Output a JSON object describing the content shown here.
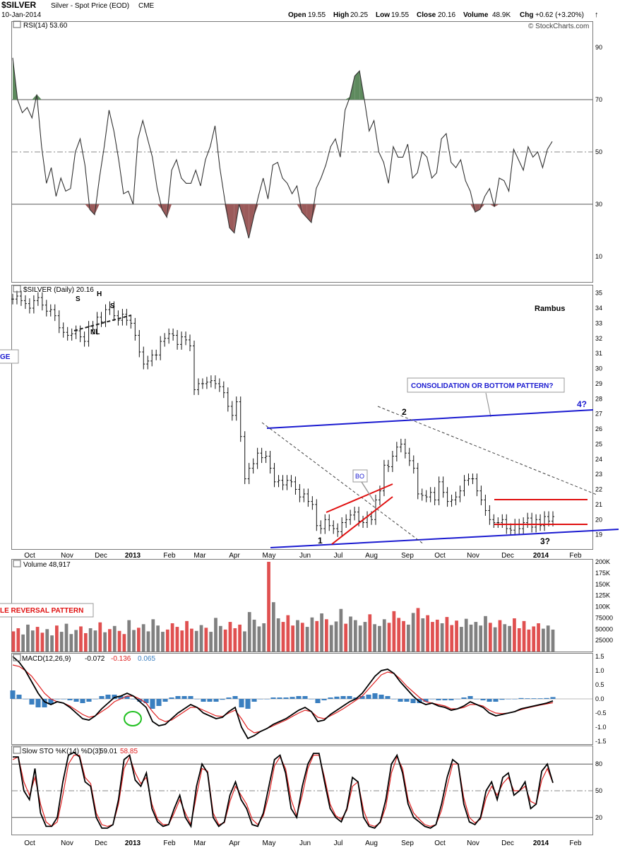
{
  "header": {
    "symbol": "$SILVER",
    "name": "Silver - Spot Price (EOD)",
    "exchange": "CME",
    "date": "10-Jan-2014",
    "open_label": "Open",
    "open": "19.55",
    "high_label": "High",
    "high": "20.25",
    "low_label": "Low",
    "low": "19.55",
    "close_label": "Close",
    "close": "20.16",
    "volume_label": "Volume",
    "volume": "48.9K",
    "chg_label": "Chg",
    "chg": "+0.62 (+3.20%)",
    "copyright": "© StockCharts.com"
  },
  "colors": {
    "rsi_overbought_fill": "#5e8a5e",
    "rsi_oversold_fill": "#9b5a5a",
    "trend_blue": "#1a1ad0",
    "pattern_red": "#e01010",
    "volume_up": "#e05050",
    "volume_down": "#808080",
    "macd_hist": "#3a7fc0",
    "signal_red": "#e02020",
    "circle_green": "#20c020"
  },
  "x_axis": {
    "labels": [
      "Oct",
      "Nov",
      "Dec",
      "2013",
      "Feb",
      "Mar",
      "Apr",
      "May",
      "Jun",
      "Jul",
      "Aug",
      "Sep",
      "Oct",
      "Nov",
      "Dec",
      "2014",
      "Feb"
    ],
    "bold": [
      "2013",
      "2014"
    ]
  },
  "annotations": {
    "rambus": "Rambus",
    "consolidation": "CONSOLIDATION OR BOTTOM PATTERN?",
    "point_4": "4?",
    "point_2": "2",
    "point_1": "1",
    "point_3": "3?",
    "bo": "BO",
    "hs_left": "S",
    "hs_head": "H",
    "hs_right": "S",
    "neckline": "NL",
    "left_edge_label": "GE",
    "reversal": "LE REVERSAL PATTERN"
  },
  "chart_data": [
    {
      "type": "line",
      "panel": "rsi",
      "title": "RSI(14) 53.60",
      "ylim": [
        0,
        100
      ],
      "yticks": [
        10,
        30,
        50,
        70,
        90
      ],
      "levels": {
        "overbought": 70,
        "oversold": 30,
        "mid": 50
      },
      "series": [
        {
          "name": "RSI(14)",
          "values": [
            86,
            70,
            65,
            67,
            63,
            72,
            52,
            38,
            44,
            33,
            40,
            35,
            36,
            50,
            55,
            45,
            28,
            26,
            40,
            52,
            66,
            58,
            47,
            34,
            35,
            30,
            55,
            62,
            55,
            48,
            36,
            28,
            25,
            43,
            47,
            40,
            38,
            38,
            43,
            37,
            47,
            52,
            60,
            44,
            32,
            21,
            19,
            30,
            24,
            17,
            25,
            33,
            40,
            32,
            45,
            46,
            40,
            38,
            34,
            37,
            27,
            25,
            23,
            36,
            40,
            45,
            52,
            55,
            48,
            66,
            71,
            79,
            81,
            70,
            58,
            62,
            50,
            46,
            38,
            52,
            48,
            48,
            53,
            40,
            42,
            50,
            48,
            40,
            42,
            55,
            57,
            46,
            44,
            47,
            39,
            35,
            27,
            28,
            33,
            36,
            29,
            40,
            39,
            35,
            51,
            47,
            43,
            52,
            48,
            50,
            44,
            51,
            54
          ]
        }
      ]
    },
    {
      "type": "bar",
      "panel": "price",
      "title": "$SILVER (Daily) 20.16",
      "ylim": [
        18,
        35.5
      ],
      "yticks": [
        19,
        20,
        21,
        22,
        23,
        24,
        25,
        26,
        27,
        28,
        29,
        30,
        31,
        32,
        33,
        34,
        35
      ],
      "series": [
        {
          "name": "$SILVER",
          "values": [
            34.6,
            34.8,
            34.5,
            34.3,
            34.0,
            34.5,
            34.7,
            34.2,
            33.8,
            33.9,
            33.5,
            32.7,
            32.4,
            32.2,
            32.3,
            32.5,
            32.1,
            31.8,
            32.8,
            32.6,
            33.4,
            33.1,
            33.9,
            34.1,
            33.5,
            33.2,
            33.6,
            33.2,
            33.0,
            32.2,
            31.1,
            30.3,
            30.5,
            30.9,
            30.9,
            31.8,
            32.0,
            32.3,
            32.2,
            31.6,
            32.1,
            31.9,
            31.5,
            28.6,
            29.0,
            29.0,
            29.1,
            29.2,
            29.0,
            28.8,
            28.4,
            27.5,
            26.9,
            27.8,
            25.5,
            22.7,
            23.4,
            23.7,
            24.4,
            24.1,
            24.2,
            23.4,
            22.5,
            22.6,
            22.3,
            22.6,
            22.5,
            22.0,
            21.5,
            21.7,
            21.2,
            21.0,
            19.6,
            19.4,
            20.0,
            19.6,
            19.4,
            19.2,
            19.8,
            20.0,
            20.3,
            20.5,
            19.9,
            19.8,
            20.2,
            20.0,
            21.3,
            21.9,
            23.6,
            23.5,
            24.2,
            24.8,
            25.0,
            24.4,
            23.9,
            23.4,
            21.7,
            21.6,
            21.5,
            21.8,
            21.3,
            22.5,
            21.8,
            21.2,
            21.3,
            21.5,
            21.9,
            22.6,
            22.7,
            22.7,
            21.9,
            21.3,
            20.6,
            20.0,
            19.8,
            19.8,
            20.0,
            19.4,
            19.3,
            19.7,
            19.4,
            19.8,
            20.1,
            19.5,
            20.0,
            19.6,
            20.2,
            19.9,
            20.2
          ]
        }
      ]
    },
    {
      "type": "bar",
      "panel": "volume",
      "title": "Volume 48,917",
      "ylim": [
        0,
        200000
      ],
      "yticks": [
        "25000",
        "50000",
        "75000",
        "100K",
        "125K",
        "150K",
        "175K",
        "200K"
      ],
      "series": [
        {
          "name": "Volume",
          "values": [
            45000,
            52000,
            38000,
            60000,
            47000,
            55000,
            42000,
            50000,
            36000,
            58000,
            44000,
            62000,
            39000,
            48000,
            56000,
            41000,
            52000,
            47000,
            65000,
            43000,
            50000,
            57000,
            46000,
            39000,
            70000,
            48000,
            53000,
            61000,
            45000,
            72000,
            58000,
            44000,
            49000,
            63000,
            55000,
            47000,
            68000,
            51000,
            46000,
            59000,
            53000,
            44000,
            75000,
            57000,
            49000,
            66000,
            52000,
            60000,
            45000,
            88000,
            71000,
            56000,
            63000,
            200000,
            110000,
            74000,
            66000,
            81000,
            58000,
            70000,
            64000,
            55000,
            76000,
            68000,
            85000,
            72000,
            59000,
            67000,
            95000,
            62000,
            78000,
            70000,
            58000,
            66000,
            83000,
            61000,
            57000,
            72000,
            64000,
            90000,
            75000,
            68000,
            60000,
            86000,
            97000,
            74000,
            81000,
            66000,
            71000,
            63000,
            77000,
            59000,
            69000,
            55000,
            73000,
            60000,
            66000,
            58000,
            79000,
            64000,
            54000,
            70000,
            61000,
            57000,
            74000,
            52000,
            68000,
            49000,
            56000,
            63000,
            51000,
            58000,
            48917
          ]
        }
      ]
    },
    {
      "type": "line",
      "panel": "macd",
      "title": "MACD(12,26,9)",
      "values_label": [
        "-0.072",
        "-0.136",
        "0.065"
      ],
      "ylim": [
        -1.6,
        1.6
      ],
      "yticks": [
        -1.5,
        -1.0,
        -0.5,
        0.0,
        0.5,
        1.0,
        1.5
      ],
      "series": [
        {
          "name": "MACD",
          "values": [
            1.5,
            1.3,
            1.0,
            0.6,
            0.2,
            -0.1,
            -0.2,
            -0.1,
            -0.15,
            -0.3,
            -0.5,
            -0.7,
            -0.75,
            -0.6,
            -0.35,
            -0.15,
            0.05,
            0.1,
            0.2,
            0.1,
            -0.1,
            -0.3,
            -0.8,
            -0.95,
            -0.9,
            -0.7,
            -0.5,
            -0.35,
            -0.2,
            -0.3,
            -0.5,
            -0.6,
            -0.7,
            -0.65,
            -0.45,
            -0.3,
            -1.0,
            -1.4,
            -1.3,
            -1.15,
            -1.05,
            -0.9,
            -0.8,
            -0.7,
            -0.55,
            -0.4,
            -0.3,
            -0.45,
            -0.8,
            -0.75,
            -0.55,
            -0.4,
            -0.25,
            -0.1,
            0.0,
            0.2,
            0.5,
            0.8,
            1.0,
            1.05,
            0.9,
            0.6,
            0.35,
            0.1,
            -0.1,
            -0.2,
            -0.15,
            -0.25,
            -0.3,
            -0.4,
            -0.35,
            -0.25,
            -0.1,
            -0.2,
            -0.3,
            -0.5,
            -0.6,
            -0.55,
            -0.5,
            -0.45,
            -0.35,
            -0.3,
            -0.25,
            -0.2,
            -0.15,
            -0.072
          ]
        },
        {
          "name": "Signal",
          "values": [
            1.2,
            1.15,
            1.0,
            0.8,
            0.5,
            0.2,
            0.0,
            -0.1,
            -0.15,
            -0.25,
            -0.4,
            -0.55,
            -0.65,
            -0.6,
            -0.45,
            -0.3,
            -0.1,
            0.0,
            0.1,
            0.1,
            0.0,
            -0.15,
            -0.45,
            -0.7,
            -0.8,
            -0.75,
            -0.6,
            -0.45,
            -0.3,
            -0.3,
            -0.4,
            -0.5,
            -0.6,
            -0.62,
            -0.5,
            -0.4,
            -0.7,
            -1.05,
            -1.2,
            -1.15,
            -1.05,
            -0.95,
            -0.85,
            -0.75,
            -0.62,
            -0.5,
            -0.4,
            -0.45,
            -0.65,
            -0.7,
            -0.6,
            -0.48,
            -0.35,
            -0.2,
            -0.05,
            0.1,
            0.35,
            0.6,
            0.85,
            0.95,
            0.9,
            0.7,
            0.45,
            0.25,
            0.05,
            -0.1,
            -0.15,
            -0.2,
            -0.25,
            -0.35,
            -0.35,
            -0.3,
            -0.2,
            -0.2,
            -0.25,
            -0.4,
            -0.5,
            -0.52,
            -0.5,
            -0.45,
            -0.38,
            -0.32,
            -0.27,
            -0.22,
            -0.18,
            -0.136
          ]
        },
        {
          "name": "Histogram",
          "values": [
            0.3,
            0.15,
            0.0,
            -0.2,
            -0.3,
            -0.3,
            -0.2,
            0.0,
            0.0,
            -0.05,
            -0.1,
            -0.15,
            -0.1,
            0.0,
            0.1,
            0.15,
            0.15,
            0.1,
            0.1,
            0.0,
            -0.1,
            -0.15,
            -0.35,
            -0.25,
            -0.1,
            0.05,
            0.1,
            0.1,
            0.1,
            0.0,
            -0.1,
            -0.1,
            -0.1,
            -0.03,
            0.05,
            0.1,
            -0.3,
            -0.35,
            -0.1,
            0.0,
            0.0,
            0.05,
            0.05,
            0.05,
            0.07,
            0.1,
            0.1,
            0.0,
            -0.15,
            -0.05,
            0.05,
            0.08,
            0.1,
            0.1,
            0.05,
            0.1,
            0.15,
            0.2,
            0.15,
            0.1,
            0.0,
            -0.1,
            -0.1,
            -0.15,
            -0.15,
            -0.1,
            0.0,
            -0.05,
            -0.05,
            -0.05,
            0.0,
            0.05,
            0.1,
            0.0,
            -0.05,
            -0.1,
            -0.1,
            -0.03,
            0.0,
            0.0,
            0.03,
            0.02,
            0.02,
            0.02,
            0.03,
            0.065
          ]
        }
      ]
    },
    {
      "type": "line",
      "panel": "stochastic",
      "title": "Slow STO %K(14) %D(3)",
      "values_label": [
        "59.01",
        "58.85"
      ],
      "ylim": [
        0,
        100
      ],
      "yticks": [
        20,
        50,
        80
      ],
      "series": [
        {
          "name": "%K",
          "values": [
            88,
            88,
            50,
            40,
            75,
            25,
            10,
            10,
            20,
            60,
            90,
            93,
            88,
            60,
            55,
            20,
            8,
            8,
            12,
            40,
            85,
            90,
            62,
            55,
            70,
            30,
            15,
            10,
            12,
            30,
            45,
            20,
            10,
            55,
            80,
            70,
            20,
            10,
            15,
            45,
            60,
            40,
            30,
            12,
            10,
            25,
            55,
            85,
            90,
            70,
            30,
            20,
            55,
            80,
            92,
            92,
            60,
            30,
            20,
            15,
            30,
            65,
            60,
            20,
            10,
            8,
            15,
            40,
            80,
            90,
            70,
            35,
            20,
            15,
            10,
            8,
            12,
            35,
            65,
            85,
            80,
            35,
            15,
            12,
            20,
            50,
            60,
            40,
            65,
            70,
            45,
            50,
            60,
            30,
            35,
            72,
            80,
            59
          ]
        },
        {
          "name": "%D",
          "values": [
            85,
            88,
            60,
            45,
            65,
            35,
            15,
            10,
            15,
            45,
            80,
            90,
            90,
            65,
            58,
            25,
            12,
            10,
            12,
            35,
            75,
            88,
            70,
            58,
            65,
            35,
            18,
            12,
            12,
            25,
            40,
            25,
            12,
            45,
            75,
            72,
            25,
            12,
            14,
            38,
            55,
            45,
            35,
            18,
            12,
            22,
            45,
            78,
            88,
            75,
            40,
            22,
            45,
            75,
            90,
            90,
            65,
            35,
            22,
            18,
            28,
            55,
            60,
            28,
            12,
            10,
            14,
            32,
            70,
            88,
            75,
            40,
            25,
            18,
            12,
            10,
            12,
            28,
            55,
            80,
            80,
            42,
            20,
            14,
            18,
            42,
            55,
            45,
            58,
            65,
            50,
            50,
            55,
            38,
            35,
            62,
            75,
            58.85
          ]
        }
      ]
    }
  ]
}
